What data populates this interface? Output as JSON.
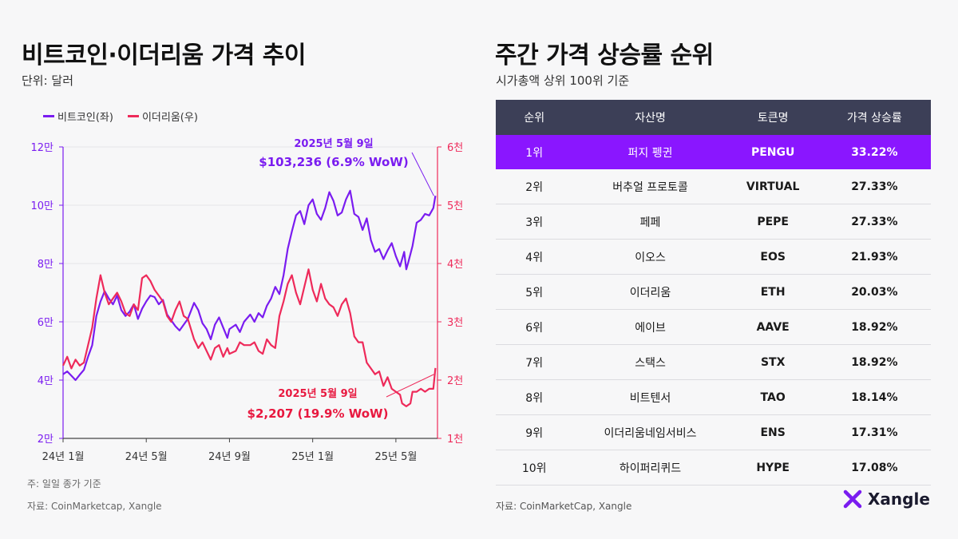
{
  "left_panel": {
    "title": "비트코인·이더리움 가격 추이",
    "unit": "단위: 달러",
    "legend": {
      "btc": "비트코인(좌)",
      "eth": "이더리움(우)"
    },
    "note": "주: 일일 종가 기준",
    "source": "자료: CoinMarketcap, Xangle"
  },
  "right_panel": {
    "title": "주간 가격 상승률 순위",
    "subtitle": "시가총액 상위 100위 기준",
    "source": "자료: CoinMarketCap, Xangle",
    "logo_text": "Xangle",
    "table": {
      "headers": [
        "순위",
        "자산명",
        "토큰명",
        "가격 상승률"
      ],
      "rows": [
        [
          "1위",
          "퍼지 펭귄",
          "PENGU",
          "33.22%"
        ],
        [
          "2위",
          "버추얼 프로토콜",
          "VIRTUAL",
          "27.33%"
        ],
        [
          "3위",
          "페페",
          "PEPE",
          "27.33%"
        ],
        [
          "4위",
          "이오스",
          "EOS",
          "21.93%"
        ],
        [
          "5위",
          "이더리움",
          "ETH",
          "20.03%"
        ],
        [
          "6위",
          "에이브",
          "AAVE",
          "18.92%"
        ],
        [
          "7위",
          "스택스",
          "STX",
          "18.92%"
        ],
        [
          "8위",
          "비트텐서",
          "TAO",
          "18.14%"
        ],
        [
          "9위",
          "이더리움네임서비스",
          "ENS",
          "17.31%"
        ],
        [
          "10위",
          "하이퍼리퀴드",
          "HYPE",
          "17.08%"
        ]
      ]
    }
  },
  "colors": {
    "btc": "#7a1cf0",
    "eth": "#ee2a5a",
    "highlight": "#8a16ff",
    "header": "#3c3f57"
  },
  "chart_data": {
    "type": "line",
    "x_ticks": [
      "24년 1월",
      "24년 5월",
      "24년 9월",
      "25년 1월",
      "25년 5월"
    ],
    "y_left": {
      "ticks": [
        "2만",
        "4만",
        "6만",
        "8만",
        "10만",
        "12만"
      ],
      "ylim": [
        20000,
        120000
      ]
    },
    "y_right": {
      "ticks": [
        "1천",
        "2천",
        "3천",
        "4천",
        "5천",
        "6천"
      ],
      "ylim": [
        1000,
        6000
      ]
    },
    "series": [
      {
        "name": "비트코인(좌)",
        "axis": "left",
        "color": "#7a1cf0",
        "points": [
          [
            0,
            42000
          ],
          [
            0.2,
            43000
          ],
          [
            0.4,
            41500
          ],
          [
            0.6,
            40000
          ],
          [
            0.8,
            41800
          ],
          [
            1,
            43500
          ],
          [
            1.2,
            48000
          ],
          [
            1.4,
            52000
          ],
          [
            1.6,
            62000
          ],
          [
            1.8,
            67000
          ],
          [
            2,
            70500
          ],
          [
            2.2,
            68000
          ],
          [
            2.4,
            66000
          ],
          [
            2.6,
            69000
          ],
          [
            2.8,
            64000
          ],
          [
            3,
            62000
          ],
          [
            3.2,
            63500
          ],
          [
            3.4,
            66000
          ],
          [
            3.6,
            61000
          ],
          [
            3.8,
            64500
          ],
          [
            4,
            67000
          ],
          [
            4.2,
            69000
          ],
          [
            4.4,
            68500
          ],
          [
            4.6,
            66000
          ],
          [
            4.8,
            67500
          ],
          [
            5,
            62500
          ],
          [
            5.2,
            60500
          ],
          [
            5.4,
            58500
          ],
          [
            5.6,
            57000
          ],
          [
            5.8,
            59000
          ],
          [
            6,
            61000
          ],
          [
            6.3,
            66500
          ],
          [
            6.5,
            64000
          ],
          [
            6.7,
            59500
          ],
          [
            6.9,
            57500
          ],
          [
            7.1,
            54000
          ],
          [
            7.3,
            59000
          ],
          [
            7.5,
            61500
          ],
          [
            7.7,
            58000
          ],
          [
            7.9,
            54500
          ],
          [
            8,
            57500
          ],
          [
            8.3,
            59000
          ],
          [
            8.5,
            56500
          ],
          [
            8.7,
            60000
          ],
          [
            9,
            62500
          ],
          [
            9.2,
            60000
          ],
          [
            9.4,
            63000
          ],
          [
            9.6,
            61500
          ],
          [
            9.8,
            65500
          ],
          [
            10,
            68000
          ],
          [
            10.2,
            72000
          ],
          [
            10.4,
            69500
          ],
          [
            10.6,
            76000
          ],
          [
            10.8,
            85000
          ],
          [
            11,
            91000
          ],
          [
            11.2,
            96500
          ],
          [
            11.4,
            98000
          ],
          [
            11.6,
            93500
          ],
          [
            11.8,
            100000
          ],
          [
            12,
            102000
          ],
          [
            12.2,
            97000
          ],
          [
            12.4,
            95000
          ],
          [
            12.6,
            99000
          ],
          [
            12.8,
            104500
          ],
          [
            13,
            101500
          ],
          [
            13.2,
            96500
          ],
          [
            13.4,
            97500
          ],
          [
            13.6,
            102000
          ],
          [
            13.8,
            105000
          ],
          [
            14,
            97000
          ],
          [
            14.2,
            96000
          ],
          [
            14.4,
            91500
          ],
          [
            14.6,
            95500
          ],
          [
            14.8,
            88000
          ],
          [
            15,
            84000
          ],
          [
            15.2,
            85000
          ],
          [
            15.4,
            81500
          ],
          [
            15.6,
            84500
          ],
          [
            15.8,
            87000
          ],
          [
            16,
            82500
          ],
          [
            16.2,
            79000
          ],
          [
            16.4,
            84000
          ],
          [
            16.5,
            78000
          ],
          [
            16.6,
            80500
          ],
          [
            16.8,
            86000
          ],
          [
            17,
            94000
          ],
          [
            17.2,
            95000
          ],
          [
            17.4,
            97000
          ],
          [
            17.6,
            96500
          ],
          [
            17.8,
            99000
          ],
          [
            17.9,
            103236
          ]
        ]
      },
      {
        "name": "이더리움(우)",
        "axis": "right",
        "color": "#ee2a5a",
        "points": [
          [
            0,
            2250
          ],
          [
            0.2,
            2400
          ],
          [
            0.4,
            2200
          ],
          [
            0.6,
            2350
          ],
          [
            0.8,
            2250
          ],
          [
            1,
            2300
          ],
          [
            1.2,
            2600
          ],
          [
            1.4,
            2900
          ],
          [
            1.6,
            3400
          ],
          [
            1.8,
            3800
          ],
          [
            2,
            3500
          ],
          [
            2.2,
            3300
          ],
          [
            2.4,
            3400
          ],
          [
            2.6,
            3500
          ],
          [
            2.8,
            3350
          ],
          [
            3,
            3150
          ],
          [
            3.2,
            3100
          ],
          [
            3.4,
            3300
          ],
          [
            3.6,
            3200
          ],
          [
            3.8,
            3750
          ],
          [
            4,
            3800
          ],
          [
            4.2,
            3700
          ],
          [
            4.4,
            3550
          ],
          [
            4.6,
            3450
          ],
          [
            4.8,
            3350
          ],
          [
            5,
            3100
          ],
          [
            5.2,
            3000
          ],
          [
            5.4,
            3200
          ],
          [
            5.6,
            3350
          ],
          [
            5.8,
            3100
          ],
          [
            6,
            3050
          ],
          [
            6.3,
            2700
          ],
          [
            6.5,
            2550
          ],
          [
            6.7,
            2650
          ],
          [
            6.9,
            2500
          ],
          [
            7.1,
            2350
          ],
          [
            7.3,
            2550
          ],
          [
            7.5,
            2600
          ],
          [
            7.7,
            2400
          ],
          [
            7.9,
            2550
          ],
          [
            8,
            2450
          ],
          [
            8.3,
            2500
          ],
          [
            8.5,
            2650
          ],
          [
            8.7,
            2600
          ],
          [
            9,
            2600
          ],
          [
            9.2,
            2650
          ],
          [
            9.4,
            2500
          ],
          [
            9.6,
            2450
          ],
          [
            9.8,
            2700
          ],
          [
            10,
            2600
          ],
          [
            10.2,
            2550
          ],
          [
            10.4,
            3100
          ],
          [
            10.6,
            3350
          ],
          [
            10.8,
            3650
          ],
          [
            11,
            3800
          ],
          [
            11.2,
            3500
          ],
          [
            11.4,
            3300
          ],
          [
            11.6,
            3600
          ],
          [
            11.8,
            3900
          ],
          [
            12,
            3550
          ],
          [
            12.2,
            3350
          ],
          [
            12.4,
            3650
          ],
          [
            12.6,
            3400
          ],
          [
            12.8,
            3300
          ],
          [
            13,
            3250
          ],
          [
            13.2,
            3100
          ],
          [
            13.4,
            3300
          ],
          [
            13.6,
            3400
          ],
          [
            13.8,
            3150
          ],
          [
            14,
            2750
          ],
          [
            14.2,
            2650
          ],
          [
            14.4,
            2650
          ],
          [
            14.6,
            2300
          ],
          [
            14.8,
            2200
          ],
          [
            15,
            2100
          ],
          [
            15.2,
            2150
          ],
          [
            15.4,
            1900
          ],
          [
            15.6,
            2050
          ],
          [
            15.8,
            1850
          ],
          [
            16,
            1800
          ],
          [
            16.2,
            1750
          ],
          [
            16.3,
            1600
          ],
          [
            16.5,
            1550
          ],
          [
            16.7,
            1600
          ],
          [
            16.8,
            1800
          ],
          [
            17,
            1800
          ],
          [
            17.2,
            1850
          ],
          [
            17.4,
            1800
          ],
          [
            17.6,
            1850
          ],
          [
            17.8,
            1850
          ],
          [
            17.9,
            2207
          ]
        ]
      }
    ],
    "annotations": [
      {
        "date": "2025년 5월 9일",
        "value": "$103,236 (6.9% WoW)",
        "series": "비트코인(좌)"
      },
      {
        "date": "2025년 5월 9일",
        "value": "$2,207 (19.9% WoW)",
        "series": "이더리움(우)"
      }
    ]
  }
}
